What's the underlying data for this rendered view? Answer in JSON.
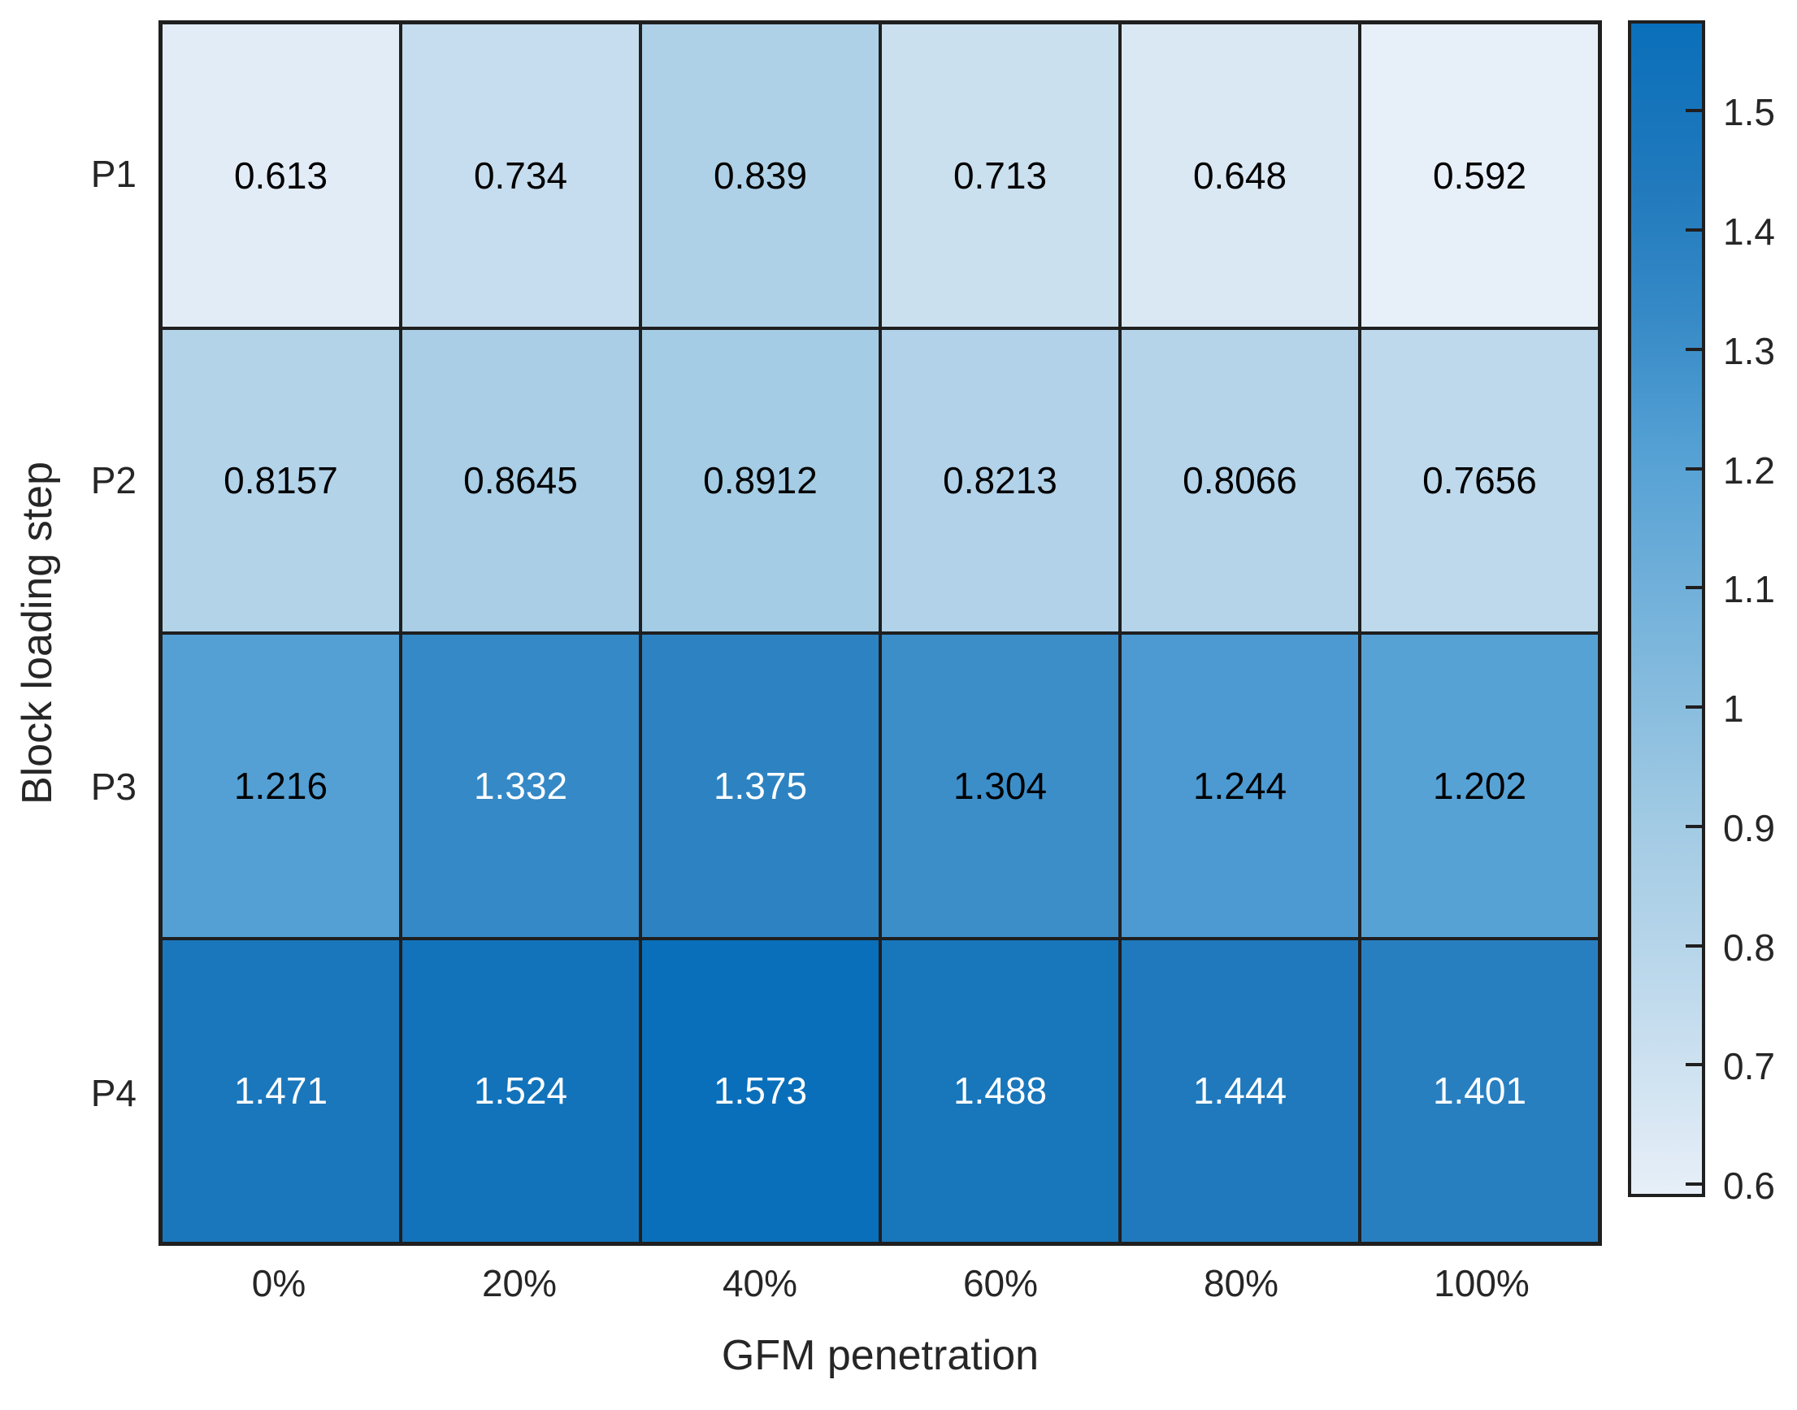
{
  "chart_data": {
    "type": "heatmap",
    "title": "",
    "xlabel": "GFM penetration",
    "ylabel": "Block loading step",
    "x_categories": [
      "0%",
      "20%",
      "40%",
      "60%",
      "80%",
      "100%"
    ],
    "y_categories": [
      "P1",
      "P2",
      "P3",
      "P4"
    ],
    "values": [
      [
        0.613,
        0.734,
        0.839,
        0.713,
        0.648,
        0.592
      ],
      [
        0.8157,
        0.8645,
        0.8912,
        0.8213,
        0.8066,
        0.7656
      ],
      [
        1.216,
        1.332,
        1.375,
        1.304,
        1.244,
        1.202
      ],
      [
        1.471,
        1.524,
        1.573,
        1.488,
        1.444,
        1.401
      ]
    ],
    "cell_labels": [
      [
        "0.613",
        "0.734",
        "0.839",
        "0.713",
        "0.648",
        "0.592"
      ],
      [
        "0.8157",
        "0.8645",
        "0.8912",
        "0.8213",
        "0.8066",
        "0.7656"
      ],
      [
        "1.216",
        "1.332",
        "1.375",
        "1.304",
        "1.244",
        "1.202"
      ],
      [
        "1.471",
        "1.524",
        "1.573",
        "1.488",
        "1.444",
        "1.401"
      ]
    ],
    "color_scale": {
      "min": 0.592,
      "max": 1.573,
      "tick_values": [
        0.6,
        0.7,
        0.8,
        0.9,
        1,
        1.1,
        1.2,
        1.3,
        1.4,
        1.5
      ],
      "tick_labels": [
        "0.6",
        "0.7",
        "0.8",
        "0.9",
        "1",
        "1.1",
        "1.2",
        "1.3",
        "1.4",
        "1.5"
      ],
      "gradient_stops": [
        {
          "t": 0.0,
          "color": "#e7eff8"
        },
        {
          "t": 0.145,
          "color": "#c5ddee"
        },
        {
          "t": 0.228,
          "color": "#b3d3e9"
        },
        {
          "t": 0.305,
          "color": "#a4cce4"
        },
        {
          "t": 0.636,
          "color": "#54a0d4"
        },
        {
          "t": 0.754,
          "color": "#3589c6"
        },
        {
          "t": 0.868,
          "color": "#2079bc"
        },
        {
          "t": 1.0,
          "color": "#0a6fba"
        }
      ]
    },
    "style": {
      "grid_line_color": "#1f1f1f",
      "background": "#ffffff",
      "cell_text_dark": "#000000",
      "cell_text_light": "#ffffff",
      "white_text_threshold": 0.74
    },
    "legend_position": "right-colorbar",
    "grid": true
  }
}
